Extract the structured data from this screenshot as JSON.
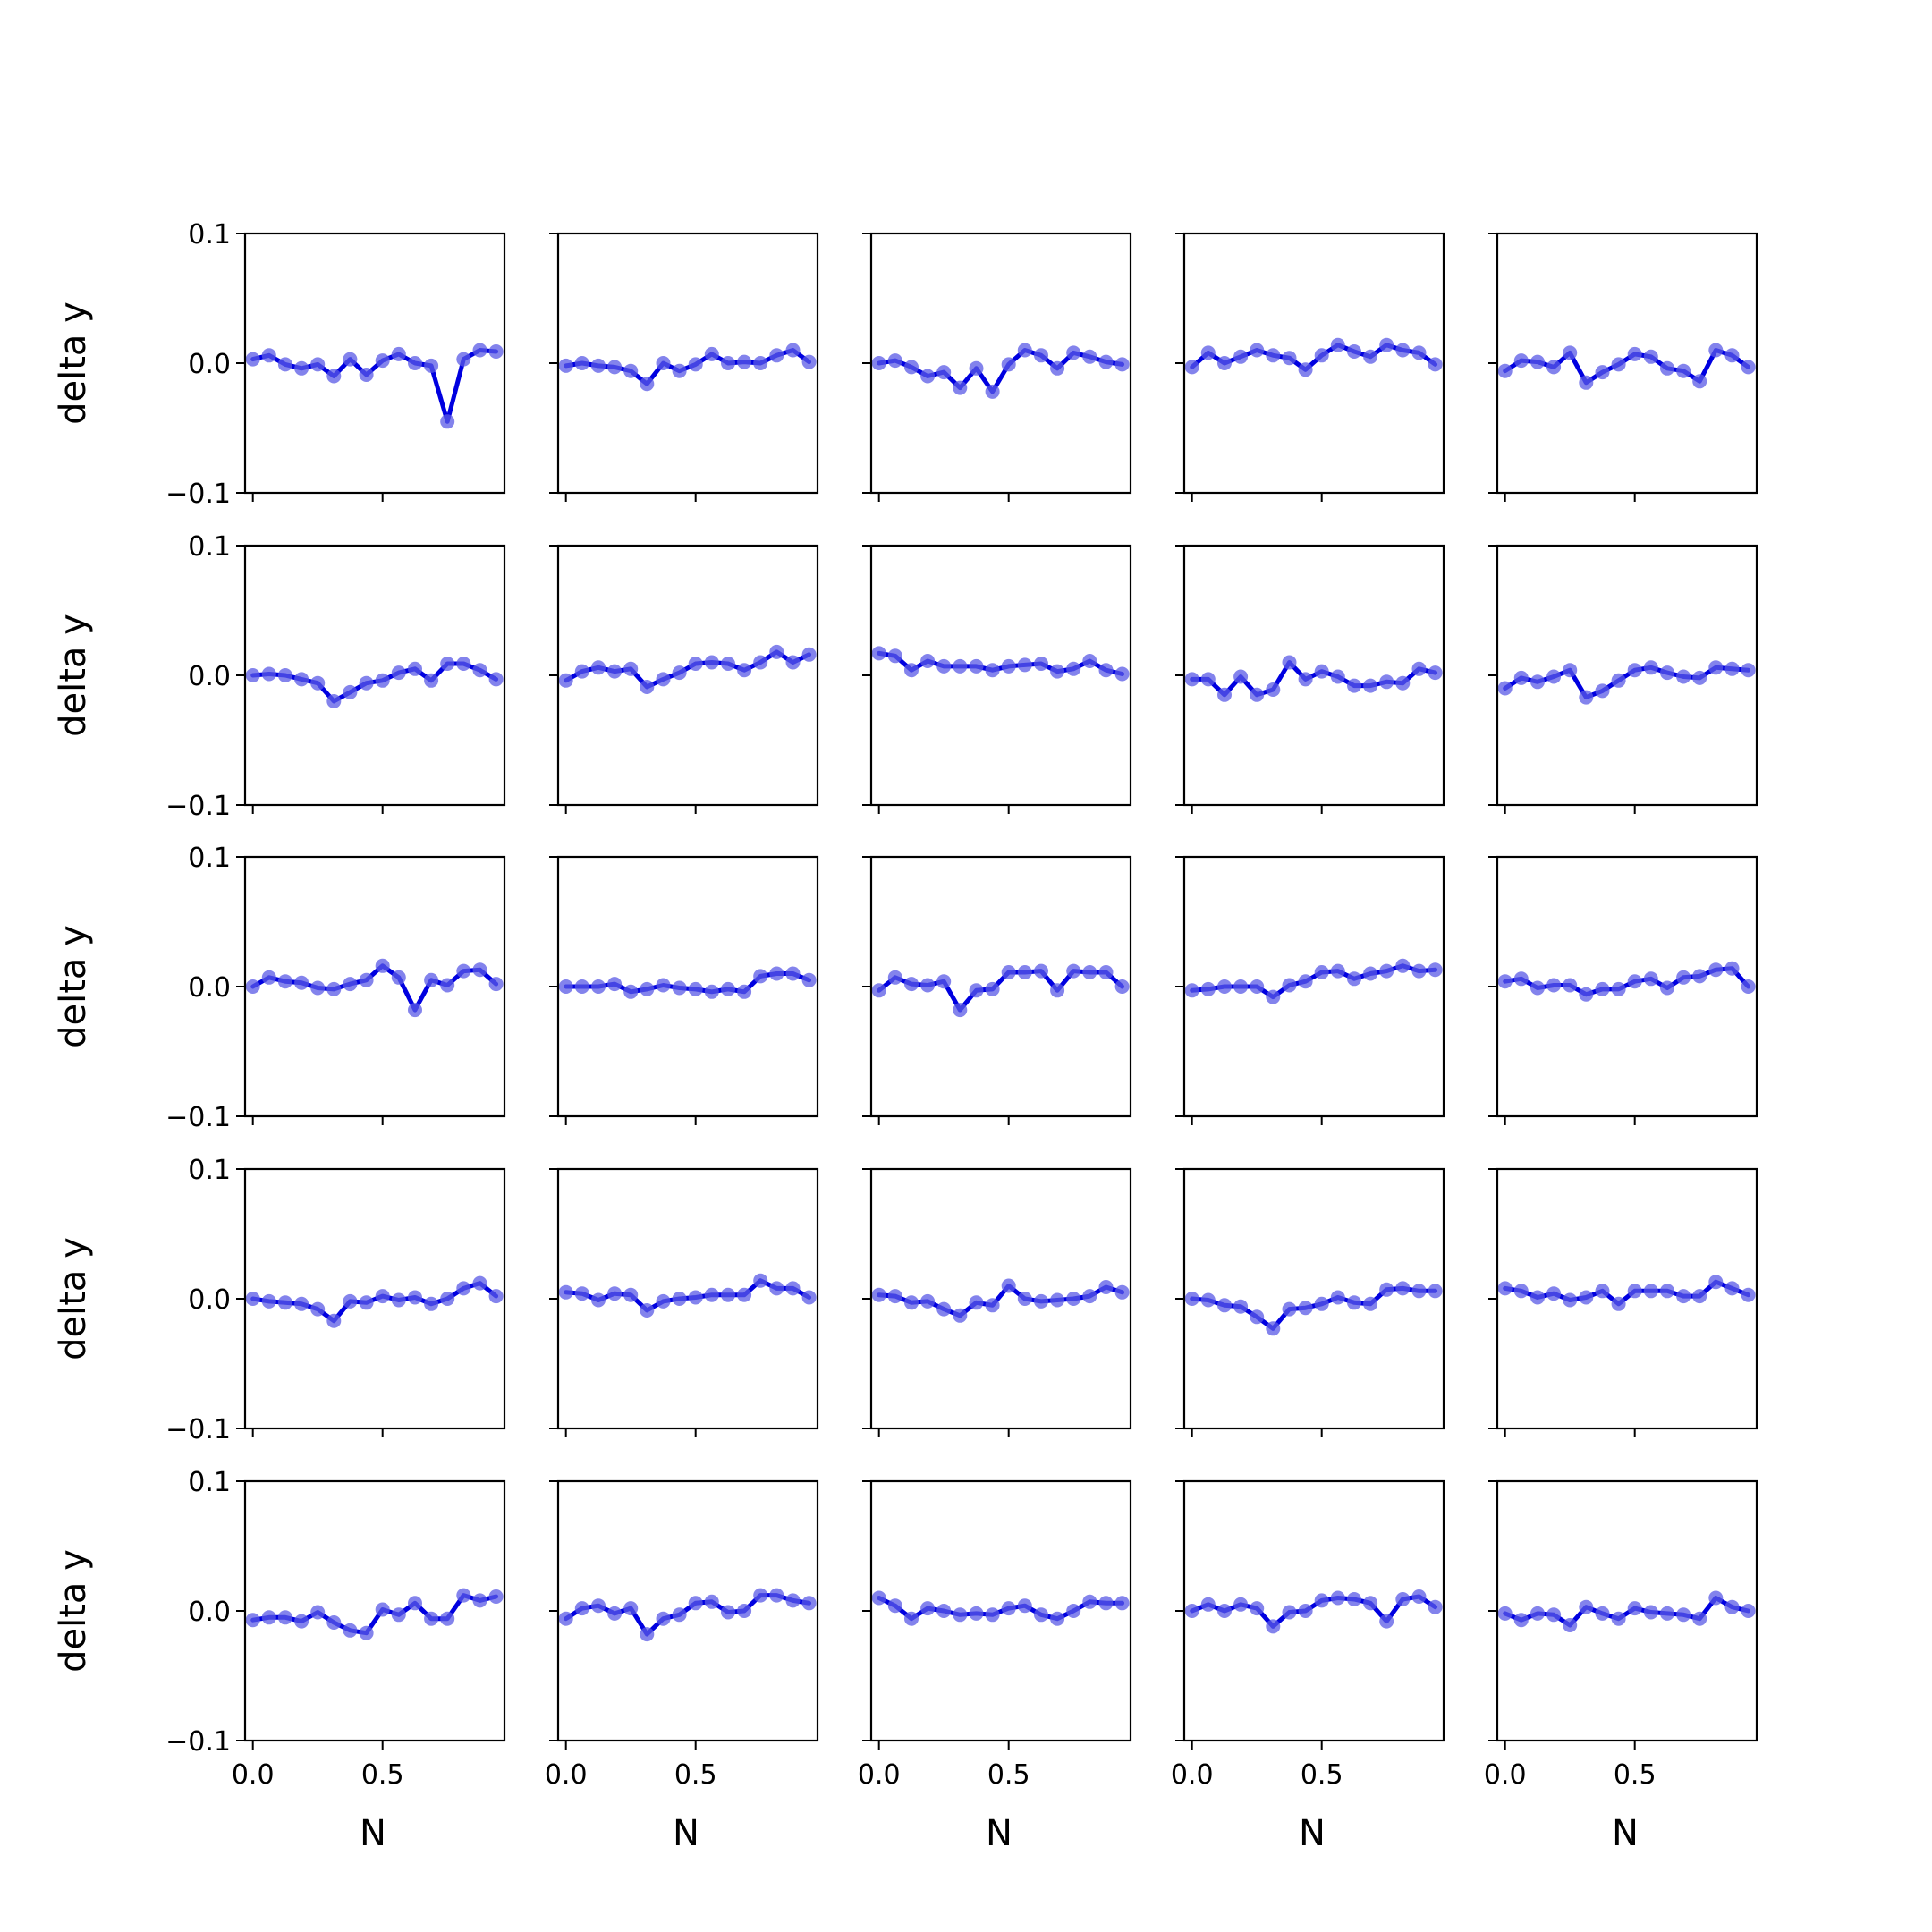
{
  "figure": {
    "line_color": "#0000e0",
    "marker_color": "#5a5ae6"
  },
  "labels": {
    "xlabel": "N",
    "ylabel": "delta y"
  },
  "axis": {
    "xlim": [
      -0.03,
      0.97
    ],
    "ylim": [
      -0.1,
      0.1
    ],
    "xticks": [
      0.0,
      0.5
    ],
    "xtick_labels": [
      "0.0",
      "0.5"
    ],
    "yticks": [
      0.1,
      0.0,
      -0.1
    ],
    "ytick_labels": [
      "0.1",
      "0.0",
      "−0.1"
    ]
  },
  "chart_data": {
    "type": "line",
    "layout": "5x5 grid of small multiples",
    "xlabel": "N",
    "ylabel": "delta y",
    "x": [
      0.0,
      0.0625,
      0.125,
      0.1875,
      0.25,
      0.3125,
      0.375,
      0.4375,
      0.5,
      0.5625,
      0.625,
      0.6875,
      0.75,
      0.8125,
      0.875,
      0.9375
    ],
    "panels": [
      [
        0.003,
        0.006,
        -0.001,
        -0.004,
        -0.001,
        -0.01,
        0.003,
        -0.009,
        0.002,
        0.007,
        0.0,
        -0.002,
        -0.045,
        0.003,
        0.01,
        0.009
      ],
      [
        -0.002,
        0.0,
        -0.002,
        -0.003,
        -0.006,
        -0.016,
        0.0,
        -0.006,
        -0.001,
        0.007,
        0.0,
        0.001,
        0.0,
        0.006,
        0.01,
        0.001
      ],
      [
        0.0,
        0.002,
        -0.003,
        -0.01,
        -0.007,
        -0.019,
        -0.004,
        -0.022,
        -0.001,
        0.01,
        0.006,
        -0.004,
        0.008,
        0.005,
        0.001,
        -0.001
      ],
      [
        -0.003,
        0.008,
        0.0,
        0.005,
        0.01,
        0.006,
        0.004,
        -0.005,
        0.006,
        0.014,
        0.009,
        0.005,
        0.014,
        0.01,
        0.008,
        -0.001
      ],
      [
        -0.006,
        0.002,
        0.001,
        -0.003,
        0.008,
        -0.015,
        -0.007,
        -0.001,
        0.007,
        0.005,
        -0.004,
        -0.006,
        -0.014,
        0.01,
        0.006,
        -0.003
      ],
      [
        0.0,
        0.001,
        0.0,
        -0.003,
        -0.006,
        -0.02,
        -0.013,
        -0.006,
        -0.004,
        0.002,
        0.005,
        -0.004,
        0.009,
        0.009,
        0.004,
        -0.003
      ],
      [
        -0.004,
        0.003,
        0.006,
        0.003,
        0.005,
        -0.009,
        -0.003,
        0.002,
        0.009,
        0.01,
        0.009,
        0.004,
        0.01,
        0.018,
        0.01,
        0.016
      ],
      [
        0.017,
        0.015,
        0.004,
        0.011,
        0.007,
        0.007,
        0.007,
        0.004,
        0.007,
        0.008,
        0.009,
        0.003,
        0.005,
        0.011,
        0.004,
        0.001
      ],
      [
        -0.003,
        -0.003,
        -0.015,
        -0.001,
        -0.015,
        -0.011,
        0.01,
        -0.003,
        0.003,
        -0.001,
        -0.008,
        -0.008,
        -0.005,
        -0.006,
        0.005,
        0.002
      ],
      [
        -0.01,
        -0.002,
        -0.005,
        -0.001,
        0.004,
        -0.017,
        -0.012,
        -0.004,
        0.004,
        0.006,
        0.002,
        -0.001,
        -0.002,
        0.006,
        0.005,
        0.004
      ],
      [
        0.0,
        0.007,
        0.004,
        0.003,
        -0.001,
        -0.002,
        0.002,
        0.005,
        0.016,
        0.007,
        -0.018,
        0.005,
        0.001,
        0.012,
        0.013,
        0.002
      ],
      [
        0.0,
        0.0,
        0.0,
        0.002,
        -0.004,
        -0.002,
        0.001,
        -0.001,
        -0.002,
        -0.004,
        -0.002,
        -0.004,
        0.008,
        0.01,
        0.01,
        0.005
      ],
      [
        -0.003,
        0.007,
        0.002,
        0.001,
        0.004,
        -0.018,
        -0.003,
        -0.002,
        0.011,
        0.011,
        0.012,
        -0.003,
        0.012,
        0.011,
        0.011,
        0.0
      ],
      [
        -0.003,
        -0.002,
        0.0,
        0.0,
        0.0,
        -0.008,
        0.001,
        0.004,
        0.011,
        0.012,
        0.006,
        0.01,
        0.012,
        0.016,
        0.012,
        0.013
      ],
      [
        0.004,
        0.006,
        -0.001,
        0.001,
        0.001,
        -0.006,
        -0.002,
        -0.002,
        0.004,
        0.006,
        -0.001,
        0.007,
        0.008,
        0.013,
        0.014,
        0.0
      ],
      [
        0.0,
        -0.002,
        -0.003,
        -0.004,
        -0.008,
        -0.017,
        -0.002,
        -0.003,
        0.002,
        -0.001,
        0.001,
        -0.004,
        0.0,
        0.008,
        0.012,
        0.002
      ],
      [
        0.005,
        0.004,
        -0.001,
        0.004,
        0.003,
        -0.009,
        -0.002,
        0.0,
        0.001,
        0.003,
        0.003,
        0.003,
        0.014,
        0.008,
        0.008,
        0.001
      ],
      [
        0.003,
        0.002,
        -0.003,
        -0.002,
        -0.008,
        -0.013,
        -0.003,
        -0.005,
        0.01,
        0.0,
        -0.002,
        -0.001,
        0.0,
        0.002,
        0.009,
        0.005
      ],
      [
        0.0,
        -0.001,
        -0.005,
        -0.006,
        -0.014,
        -0.023,
        -0.008,
        -0.007,
        -0.004,
        0.001,
        -0.003,
        -0.004,
        0.007,
        0.008,
        0.006,
        0.006
      ],
      [
        0.008,
        0.006,
        0.001,
        0.004,
        -0.001,
        0.001,
        0.006,
        -0.004,
        0.006,
        0.006,
        0.006,
        0.002,
        0.002,
        0.013,
        0.008,
        0.003
      ],
      [
        -0.007,
        -0.005,
        -0.005,
        -0.008,
        -0.001,
        -0.009,
        -0.015,
        -0.017,
        0.001,
        -0.003,
        0.006,
        -0.006,
        -0.006,
        0.012,
        0.008,
        0.011
      ],
      [
        -0.006,
        0.002,
        0.004,
        -0.002,
        0.002,
        -0.018,
        -0.006,
        -0.003,
        0.006,
        0.007,
        -0.001,
        0.0,
        0.012,
        0.012,
        0.008,
        0.006
      ],
      [
        0.01,
        0.004,
        -0.006,
        0.002,
        0.0,
        -0.003,
        -0.002,
        -0.003,
        0.002,
        0.004,
        -0.003,
        -0.006,
        0.0,
        0.007,
        0.006,
        0.006
      ],
      [
        0.0,
        0.005,
        0.0,
        0.005,
        0.002,
        -0.012,
        -0.001,
        0.0,
        0.008,
        0.01,
        0.009,
        0.006,
        -0.008,
        0.009,
        0.011,
        0.003
      ],
      [
        -0.002,
        -0.007,
        -0.002,
        -0.003,
        -0.011,
        0.003,
        -0.002,
        -0.006,
        0.002,
        -0.001,
        -0.002,
        -0.003,
        -0.006,
        0.01,
        0.003,
        0.0
      ]
    ]
  }
}
